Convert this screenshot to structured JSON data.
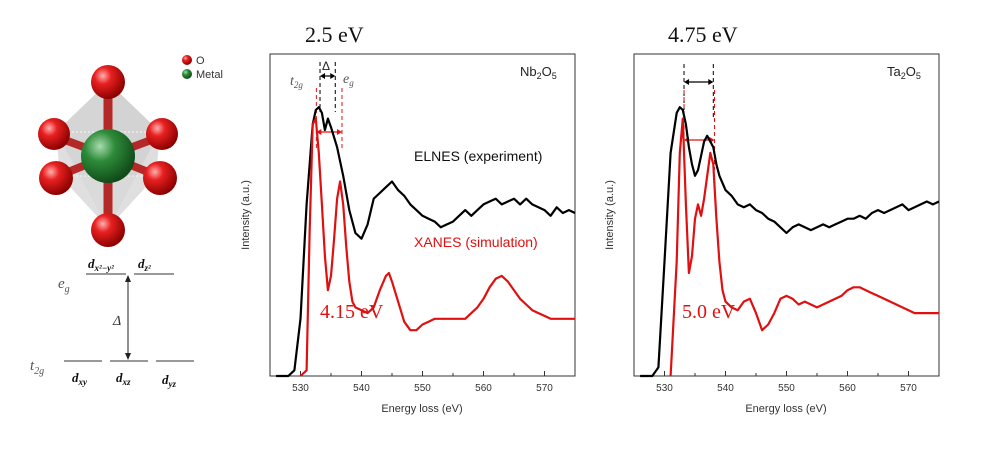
{
  "colors": {
    "experiment": "#000000",
    "simulation": "#e01010",
    "oxygen": "#e01a1a",
    "metal": "#2e8b3a",
    "octahedron": "#c8c8c8"
  },
  "legend": {
    "oxygen_label": "O",
    "metal_label": "Metal"
  },
  "orbital_diagram": {
    "eg_label": "e",
    "eg_sub": "g",
    "t2g_label": "t",
    "t2g_sub": "2g",
    "delta": "Δ",
    "eg_orbitals": [
      {
        "base": "d",
        "sub": "x²−y²"
      },
      {
        "base": "d",
        "sub": "z²"
      }
    ],
    "t2g_orbitals": [
      {
        "base": "d",
        "sub": "xy"
      },
      {
        "base": "d",
        "sub": "xz"
      },
      {
        "base": "d",
        "sub": "yz"
      }
    ]
  },
  "chart_data": [
    {
      "type": "line",
      "panel_label": "Nb2O5",
      "panel_label_parts": {
        "a": "Nb",
        "s1": "2",
        "b": "O",
        "s2": "5"
      },
      "xlabel": "Energy loss (eV)",
      "ylabel": "Intensity (a.u.)",
      "xlim": [
        525,
        575
      ],
      "ylim": [
        0,
        1
      ],
      "xticks": [
        530,
        540,
        550,
        560,
        570
      ],
      "tick_labels": [
        "530",
        "540",
        "550",
        "560",
        "570"
      ],
      "top_annotation": "2.5 eV",
      "bottom_annotation": "4.15 eV",
      "series_label_exp": "ELNES (experiment)",
      "series_label_sim": "XANES (simulation)",
      "t2g_marker": "t",
      "t2g_marker_sub": "2g",
      "eg_marker": "e",
      "eg_marker_sub": "g",
      "delta_marker": "Δ",
      "exp_marker_x": [
        533.2,
        535.7
      ],
      "sim_marker_x": [
        532.6,
        536.8
      ],
      "series": [
        {
          "name": "ELNES (experiment)",
          "x": [
            526,
            528,
            529,
            530,
            531,
            532,
            532.5,
            533,
            533.5,
            534,
            534.5,
            535,
            536,
            537,
            538,
            539,
            540,
            541,
            542,
            543,
            544,
            545,
            546,
            547,
            548,
            549,
            550,
            551,
            552,
            553,
            554,
            555,
            556,
            557,
            558,
            559,
            560,
            561,
            562,
            563,
            564,
            565,
            566,
            567,
            568,
            569,
            570,
            571,
            572,
            573,
            574,
            575
          ],
          "y": [
            0.0,
            0.0,
            0.02,
            0.2,
            0.6,
            0.88,
            0.93,
            0.94,
            0.92,
            0.86,
            0.9,
            0.87,
            0.8,
            0.7,
            0.58,
            0.5,
            0.48,
            0.53,
            0.62,
            0.64,
            0.66,
            0.68,
            0.65,
            0.63,
            0.6,
            0.58,
            0.56,
            0.55,
            0.54,
            0.52,
            0.53,
            0.54,
            0.56,
            0.58,
            0.56,
            0.58,
            0.6,
            0.61,
            0.62,
            0.6,
            0.61,
            0.62,
            0.6,
            0.62,
            0.6,
            0.59,
            0.58,
            0.56,
            0.59,
            0.57,
            0.58,
            0.57
          ]
        },
        {
          "name": "XANES (simulation)",
          "x": [
            530,
            531,
            531.5,
            532,
            532.5,
            533,
            533.5,
            534,
            534.5,
            535,
            535.5,
            536,
            536.5,
            537,
            537.5,
            538,
            538.5,
            539,
            540,
            541,
            542,
            543,
            544,
            544.5,
            545,
            546,
            547,
            548,
            549,
            550,
            551,
            552,
            553,
            554,
            555,
            556,
            557,
            558,
            559,
            560,
            561,
            562,
            563,
            564,
            565,
            566,
            567,
            568,
            569,
            570,
            571,
            572,
            573,
            574,
            575
          ],
          "y": [
            0.0,
            0.02,
            0.5,
            0.88,
            0.9,
            0.78,
            0.6,
            0.42,
            0.3,
            0.35,
            0.48,
            0.62,
            0.68,
            0.6,
            0.45,
            0.33,
            0.26,
            0.24,
            0.23,
            0.22,
            0.24,
            0.3,
            0.35,
            0.36,
            0.33,
            0.26,
            0.19,
            0.16,
            0.16,
            0.18,
            0.19,
            0.2,
            0.2,
            0.2,
            0.2,
            0.2,
            0.2,
            0.22,
            0.24,
            0.27,
            0.31,
            0.34,
            0.35,
            0.33,
            0.3,
            0.27,
            0.25,
            0.23,
            0.22,
            0.21,
            0.2,
            0.2,
            0.2,
            0.2,
            0.2
          ]
        }
      ]
    },
    {
      "type": "line",
      "panel_label": "Ta2O5",
      "panel_label_parts": {
        "a": "Ta",
        "s1": "2",
        "b": "O",
        "s2": "5"
      },
      "xlabel": "Energy loss (eV)",
      "ylabel": "Intensity (a.u.)",
      "xlim": [
        525,
        575
      ],
      "ylim": [
        0,
        1
      ],
      "xticks": [
        530,
        540,
        550,
        560,
        570
      ],
      "tick_labels": [
        "530",
        "540",
        "550",
        "560",
        "570"
      ],
      "top_annotation": "4.75 eV",
      "bottom_annotation": "5.0 eV",
      "exp_marker_x": [
        533.2,
        538.0
      ],
      "sim_marker_x": [
        533.2,
        538.2
      ],
      "series": [
        {
          "name": "ELNES (experiment)",
          "x": [
            526,
            528,
            529,
            530,
            531,
            532,
            532.5,
            533,
            533.5,
            534,
            534.5,
            535,
            535.5,
            536,
            536.5,
            537,
            537.5,
            538,
            538.5,
            539,
            540,
            541,
            542,
            543,
            544,
            545,
            546,
            547,
            548,
            549,
            550,
            551,
            552,
            553,
            554,
            555,
            556,
            557,
            558,
            559,
            560,
            561,
            562,
            563,
            564,
            565,
            566,
            567,
            568,
            569,
            570,
            571,
            572,
            573,
            574,
            575
          ],
          "y": [
            0.0,
            0.0,
            0.03,
            0.4,
            0.78,
            0.92,
            0.94,
            0.93,
            0.88,
            0.8,
            0.74,
            0.7,
            0.72,
            0.77,
            0.82,
            0.84,
            0.82,
            0.8,
            0.74,
            0.7,
            0.65,
            0.63,
            0.6,
            0.59,
            0.6,
            0.58,
            0.57,
            0.55,
            0.54,
            0.52,
            0.5,
            0.52,
            0.53,
            0.52,
            0.51,
            0.52,
            0.53,
            0.52,
            0.53,
            0.54,
            0.55,
            0.55,
            0.56,
            0.55,
            0.57,
            0.58,
            0.57,
            0.58,
            0.59,
            0.6,
            0.58,
            0.59,
            0.6,
            0.61,
            0.6,
            0.61
          ]
        },
        {
          "name": "XANES (simulation)",
          "x": [
            531,
            532,
            532.5,
            533,
            533.5,
            534,
            534.5,
            535,
            535.5,
            536,
            536.5,
            537,
            537.5,
            538,
            538.5,
            539,
            539.5,
            540,
            541,
            542,
            543,
            544,
            545,
            546,
            547,
            548,
            549,
            550,
            551,
            552,
            553,
            554,
            555,
            556,
            557,
            558,
            559,
            560,
            561,
            562,
            563,
            564,
            565,
            566,
            567,
            568,
            569,
            570,
            571,
            572,
            573,
            574,
            575
          ],
          "y": [
            0.0,
            0.4,
            0.78,
            0.9,
            0.6,
            0.36,
            0.42,
            0.55,
            0.6,
            0.56,
            0.62,
            0.7,
            0.78,
            0.74,
            0.55,
            0.4,
            0.3,
            0.26,
            0.24,
            0.23,
            0.26,
            0.27,
            0.22,
            0.16,
            0.18,
            0.22,
            0.27,
            0.28,
            0.27,
            0.25,
            0.26,
            0.25,
            0.24,
            0.25,
            0.26,
            0.27,
            0.28,
            0.3,
            0.31,
            0.31,
            0.3,
            0.29,
            0.28,
            0.27,
            0.26,
            0.25,
            0.24,
            0.23,
            0.22,
            0.22,
            0.22,
            0.22,
            0.22
          ]
        }
      ]
    }
  ]
}
